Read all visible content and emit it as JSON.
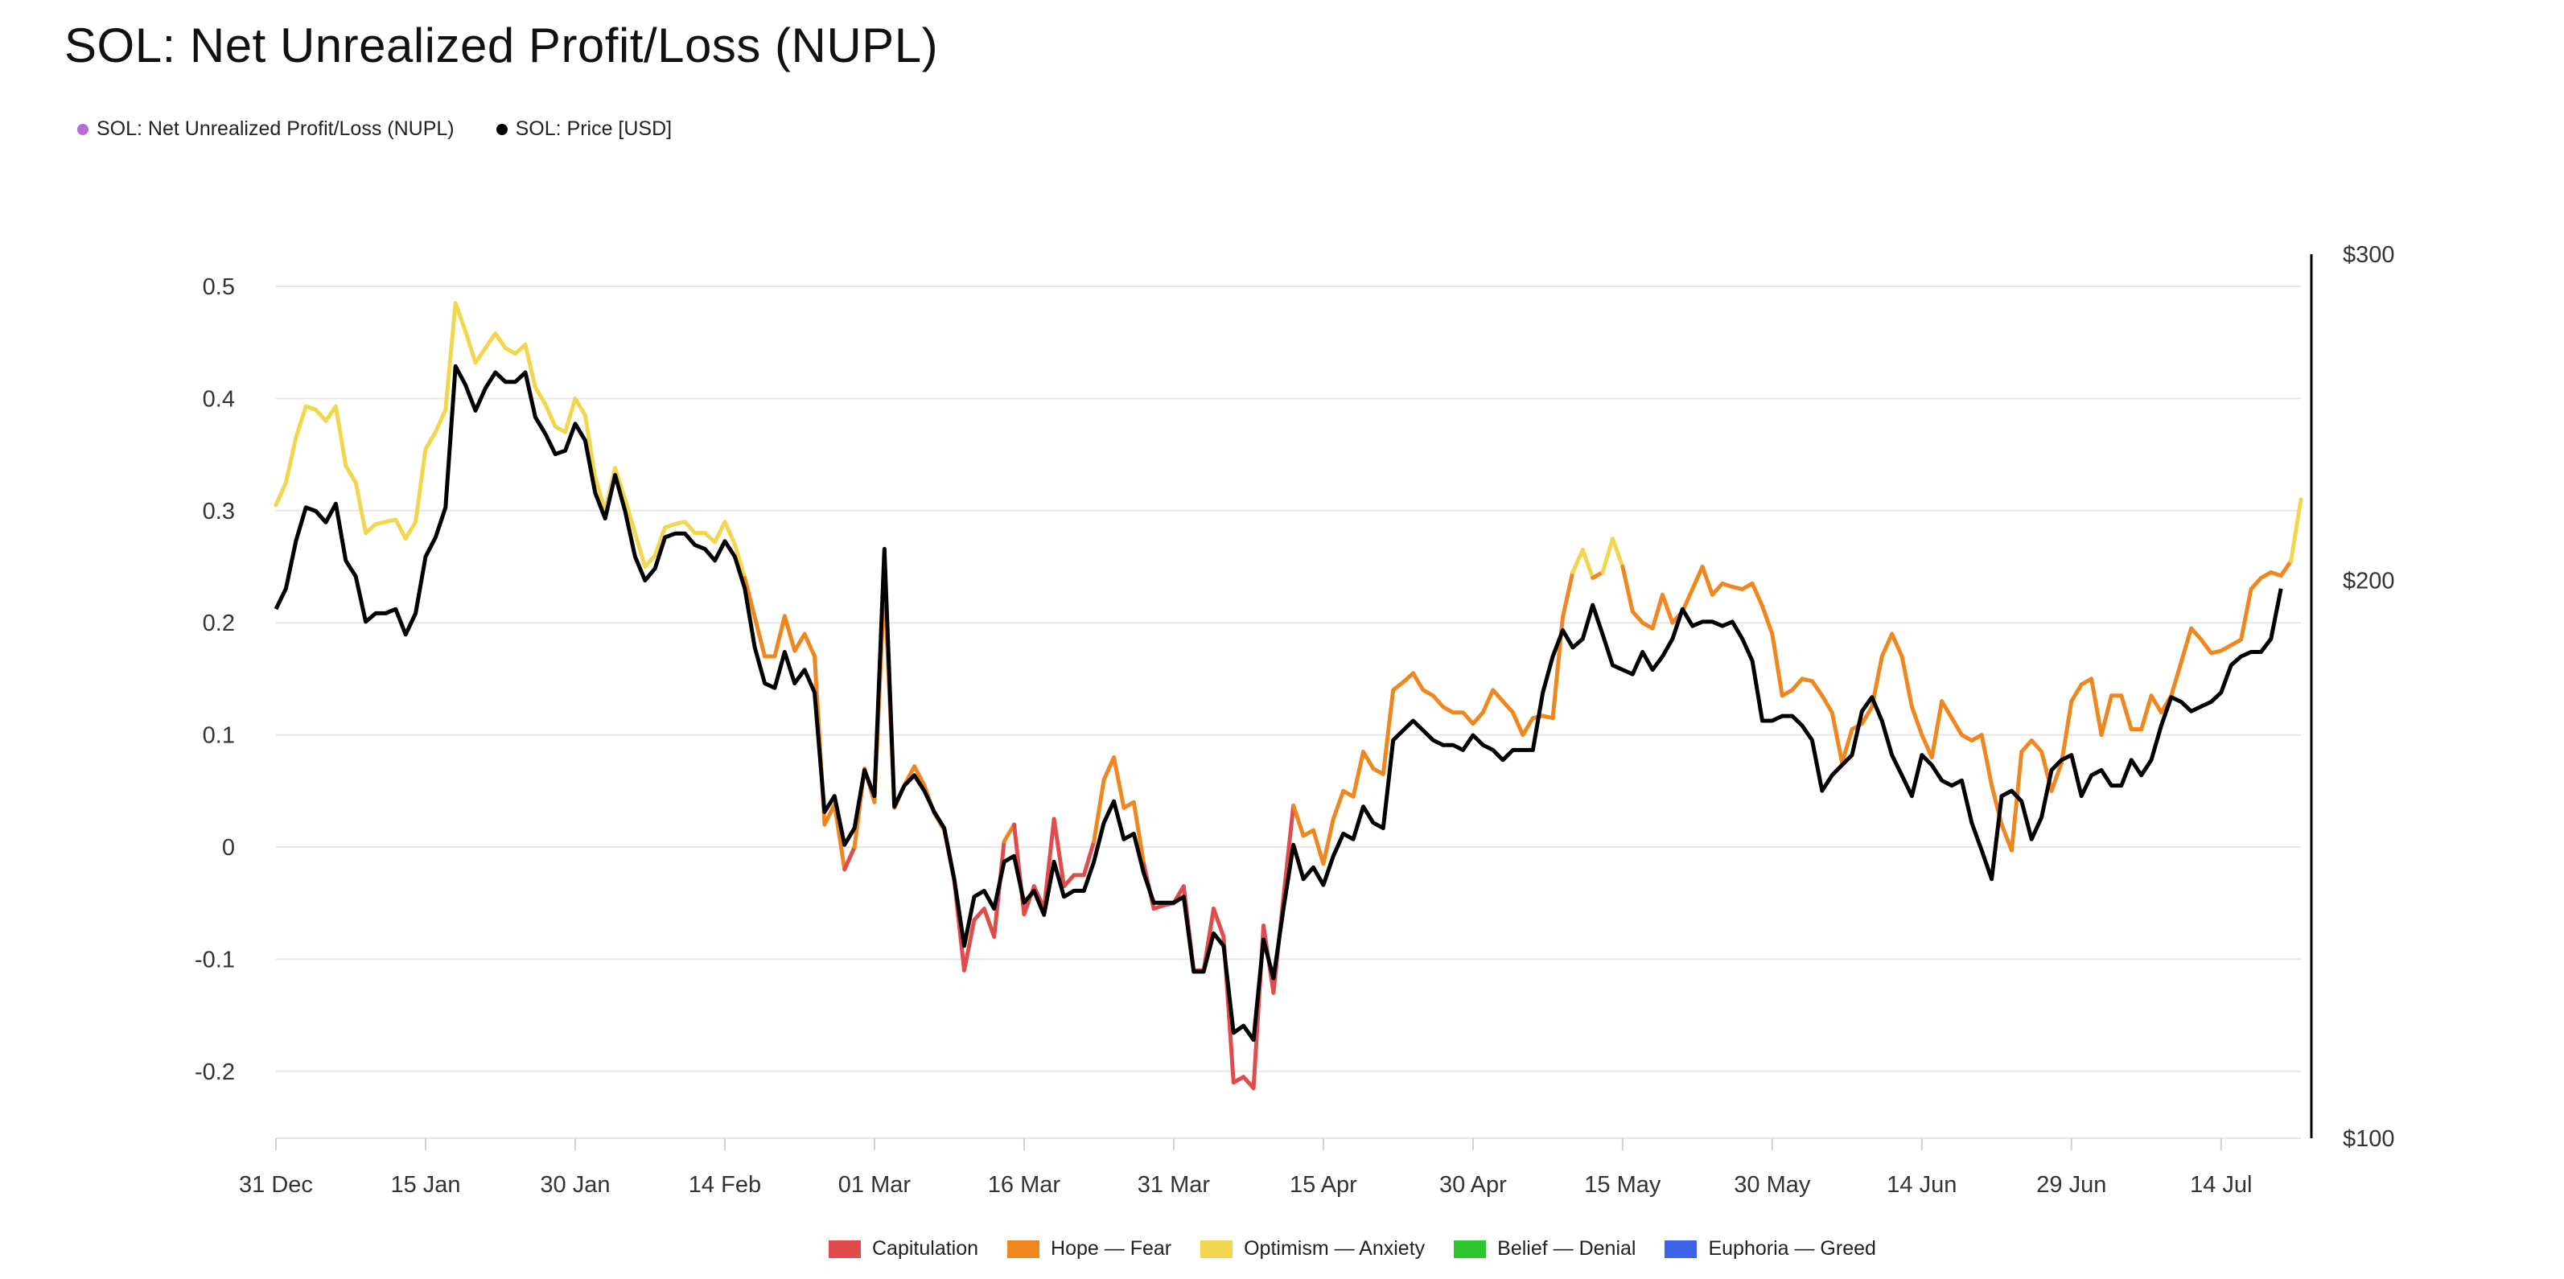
{
  "page": {
    "title": "SOL: Net Unrealized Profit/Loss (NUPL)"
  },
  "legend_top": [
    {
      "label": "SOL: Net Unrealized Profit/Loss (NUPL)",
      "color": "#b86bd6"
    },
    {
      "label": "SOL: Price [USD]",
      "color": "#000000"
    }
  ],
  "legend_bottom": [
    {
      "label": "Capitulation",
      "color": "#e04b4b"
    },
    {
      "label": "Hope — Fear",
      "color": "#f0861e"
    },
    {
      "label": "Optimism — Anxiety",
      "color": "#f2d64e"
    },
    {
      "label": "Belief — Denial",
      "color": "#2fc52f"
    },
    {
      "label": "Euphoria — Greed",
      "color": "#3d63e8"
    }
  ],
  "chart_data": {
    "type": "line",
    "title": "SOL: Net Unrealized Profit/Loss (NUPL)",
    "y_left": {
      "ticks": [
        "0.5",
        "0.4",
        "0.3",
        "0.2",
        "0.1",
        "0",
        "-0.1",
        "-0.2"
      ],
      "range": [
        -0.26,
        0.5
      ]
    },
    "y_right": {
      "ticks": [
        "$300",
        "$200",
        "$100"
      ],
      "scale": "log",
      "range": [
        100,
        300
      ]
    },
    "x_ticks": [
      "31 Dec",
      "15 Jan",
      "30 Jan",
      "14 Feb",
      "01 Mar",
      "16 Mar",
      "31 Mar",
      "15 Apr",
      "30 Apr",
      "15 May",
      "30 May",
      "14 Jun",
      "29 Jun",
      "14 Jul"
    ],
    "x_start": "2023-12-31",
    "grid": "horizontal",
    "zone_thresholds": {
      "capitulation_below": 0,
      "hope_fear_below": 0.25,
      "optimism_anxiety_below": 0.5,
      "belief_denial_below": 0.75
    },
    "series": [
      {
        "name": "SOL: Net Unrealized Profit/Loss (NUPL)",
        "axis": "left",
        "colored_by_zone": true,
        "values": [
          0.305,
          0.325,
          0.365,
          0.393,
          0.39,
          0.38,
          0.393,
          0.34,
          0.325,
          0.28,
          0.288,
          0.29,
          0.292,
          0.275,
          0.29,
          0.355,
          0.37,
          0.39,
          0.485,
          0.46,
          0.432,
          0.445,
          0.458,
          0.445,
          0.44,
          0.448,
          0.41,
          0.395,
          0.375,
          0.37,
          0.4,
          0.385,
          0.33,
          0.3,
          0.338,
          0.31,
          0.28,
          0.25,
          0.26,
          0.285,
          0.288,
          0.29,
          0.28,
          0.28,
          0.272,
          0.29,
          0.27,
          0.24,
          0.205,
          0.17,
          0.17,
          0.206,
          0.175,
          0.19,
          0.17,
          0.02,
          0.038,
          -0.02,
          0.0,
          0.07,
          0.04,
          0.238,
          0.035,
          0.055,
          0.072,
          0.055,
          0.03,
          0.015,
          -0.03,
          -0.11,
          -0.065,
          -0.055,
          -0.08,
          0.005,
          0.02,
          -0.06,
          -0.035,
          -0.055,
          0.025,
          -0.035,
          -0.025,
          -0.025,
          0.005,
          0.06,
          0.08,
          0.035,
          0.04,
          -0.015,
          -0.055,
          -0.052,
          -0.05,
          -0.035,
          -0.11,
          -0.11,
          -0.055,
          -0.08,
          -0.21,
          -0.205,
          -0.215,
          -0.07,
          -0.13,
          -0.045,
          0.037,
          0.01,
          0.015,
          -0.015,
          0.025,
          0.05,
          0.045,
          0.085,
          0.07,
          0.065,
          0.14,
          0.147,
          0.155,
          0.14,
          0.135,
          0.125,
          0.12,
          0.12,
          0.11,
          0.12,
          0.14,
          0.13,
          0.12,
          0.1,
          0.115,
          0.117,
          0.115,
          0.205,
          0.245,
          0.265,
          0.24,
          0.245,
          0.275,
          0.25,
          0.21,
          0.2,
          0.195,
          0.225,
          0.2,
          0.21,
          0.23,
          0.25,
          0.225,
          0.235,
          0.232,
          0.23,
          0.235,
          0.215,
          0.19,
          0.135,
          0.14,
          0.15,
          0.148,
          0.135,
          0.12,
          0.075,
          0.105,
          0.11,
          0.125,
          0.17,
          0.19,
          0.17,
          0.125,
          0.1,
          0.08,
          0.13,
          0.115,
          0.1,
          0.095,
          0.1,
          0.055,
          0.02,
          -0.003,
          0.085,
          0.095,
          0.085,
          0.05,
          0.075,
          0.13,
          0.145,
          0.15,
          0.1,
          0.135,
          0.135,
          0.105,
          0.105,
          0.135,
          0.12,
          0.135,
          0.165,
          0.195,
          0.185,
          0.173,
          0.175,
          0.18,
          0.185,
          0.23,
          0.24,
          0.245,
          0.242,
          0.255,
          0.31
        ]
      },
      {
        "name": "SOL: Price [USD]",
        "axis": "right",
        "color": "#000000",
        "values": [
          193,
          198,
          210,
          219,
          218,
          215,
          220,
          205,
          201,
          190,
          192,
          192,
          193,
          187,
          192,
          206,
          211,
          219,
          261,
          255,
          247,
          254,
          259,
          256,
          256,
          259,
          245,
          240,
          234,
          235,
          243,
          238,
          223,
          216,
          228,
          218,
          206,
          200,
          203,
          211,
          212,
          212,
          209,
          208,
          205,
          210,
          206,
          198,
          184,
          176,
          175,
          183,
          176,
          179,
          174,
          150,
          153,
          144,
          147,
          158,
          153,
          208,
          151,
          155,
          157,
          154,
          150,
          147,
          138,
          127,
          135,
          136,
          133,
          141,
          142,
          134,
          136,
          132,
          141,
          135,
          136,
          136,
          141,
          148,
          152,
          145,
          146,
          139,
          134,
          134,
          134,
          135,
          123,
          123,
          129,
          127,
          114,
          115,
          113,
          128,
          122,
          133,
          144,
          138,
          140,
          137,
          142,
          146,
          145,
          151,
          148,
          147,
          164,
          166,
          168,
          166,
          164,
          163,
          163,
          162,
          165,
          163,
          162,
          160,
          162,
          162,
          162,
          174,
          182,
          188,
          184,
          186,
          194,
          187,
          180,
          179,
          178,
          183,
          179,
          182,
          186,
          193,
          189,
          190,
          190,
          189,
          190,
          186,
          181,
          168,
          168,
          169,
          169,
          167,
          164,
          154,
          157,
          159,
          161,
          170,
          173,
          168,
          161,
          157,
          153,
          161,
          159,
          156,
          155,
          156,
          148,
          143,
          138,
          153,
          154,
          152,
          145,
          149,
          158,
          160,
          161,
          153,
          157,
          158,
          155,
          155,
          160,
          157,
          160,
          167,
          173,
          172,
          170,
          171,
          172,
          174,
          180,
          182,
          183,
          183,
          186,
          198
        ]
      }
    ]
  }
}
